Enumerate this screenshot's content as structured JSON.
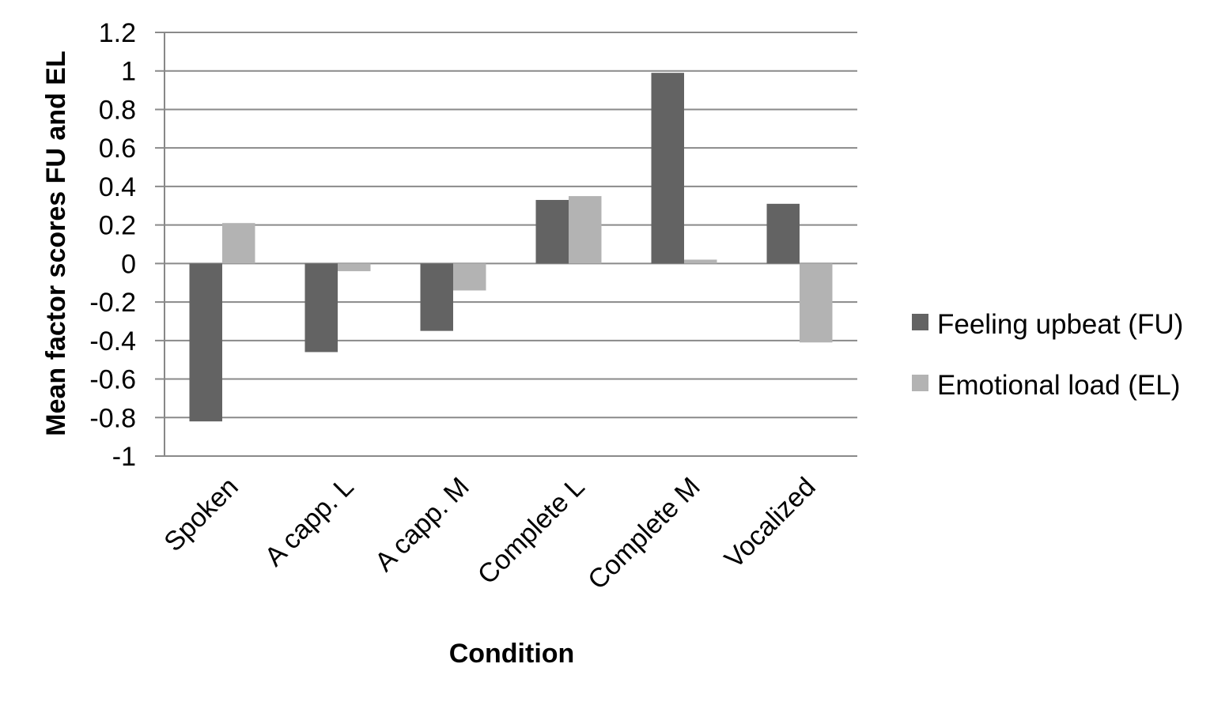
{
  "chart_data": {
    "type": "bar",
    "title": "",
    "xlabel": "Condition",
    "ylabel": "Mean factor scores FU and EL",
    "ylim": [
      -1,
      1.2
    ],
    "yticks": [
      "1.2",
      "1",
      "0.8",
      "0.6",
      "0.4",
      "0.2",
      "0",
      "-0.2",
      "-0.4",
      "-0.6",
      "-0.8",
      "-1"
    ],
    "categories": [
      "Spoken",
      "A capp. L",
      "A capp. M",
      "Complete L",
      "Complete M",
      "Vocalized"
    ],
    "series": [
      {
        "name": "Feeling upbeat (FU)",
        "color": "#636363",
        "values": [
          -0.82,
          -0.46,
          -0.35,
          0.33,
          0.99,
          0.31
        ]
      },
      {
        "name": "Emotional load (EL)",
        "color": "#b3b3b3",
        "values": [
          0.21,
          -0.04,
          -0.14,
          0.35,
          0.02,
          -0.41
        ]
      }
    ],
    "grid": true,
    "legend_position": "right"
  }
}
